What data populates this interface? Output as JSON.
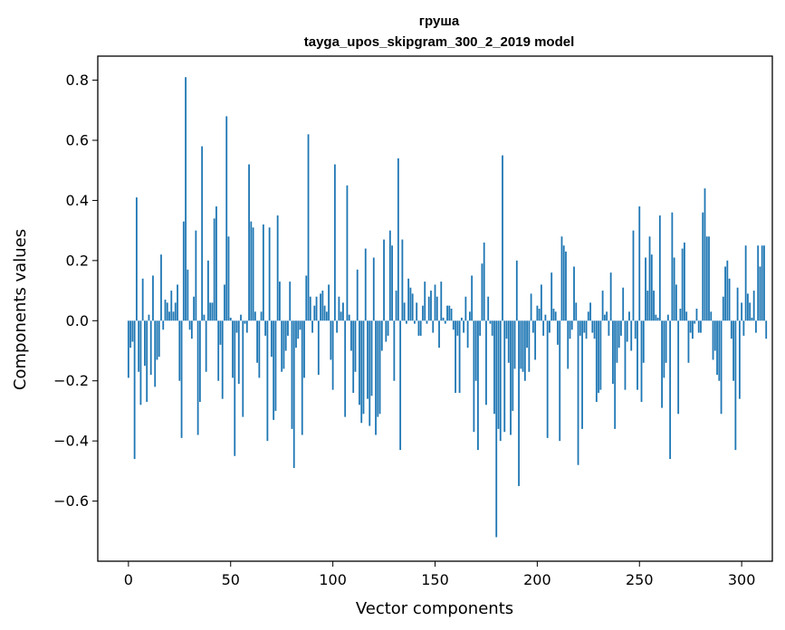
{
  "chart_data": {
    "type": "bar",
    "title": "груша",
    "subtitle": "tayga_upos_skipgram_300_2_2019 model",
    "xlabel": "Vector components",
    "ylabel": "Components values",
    "xlim": [
      -15,
      315
    ],
    "ylim": [
      -0.8,
      0.88
    ],
    "xticks": [
      0,
      50,
      100,
      150,
      200,
      250,
      300
    ],
    "yticks": [
      -0.6,
      -0.4,
      -0.2,
      0.0,
      0.2,
      0.4,
      0.6,
      0.8
    ],
    "xtick_labels": [
      "0",
      "50",
      "100",
      "150",
      "200",
      "250",
      "300"
    ],
    "ytick_labels": [
      "−0.6",
      "−0.4",
      "−0.2",
      "0.0",
      "0.2",
      "0.4",
      "0.6",
      "0.8"
    ],
    "bar_color": "#1f77b4",
    "grid": false,
    "values": [
      -0.19,
      -0.09,
      -0.07,
      -0.46,
      0.41,
      -0.17,
      -0.28,
      0.14,
      -0.15,
      -0.27,
      0.02,
      -0.18,
      0.15,
      -0.22,
      -0.13,
      -0.12,
      0.22,
      -0.03,
      0.07,
      0.06,
      0.03,
      0.1,
      0.03,
      0.06,
      0.12,
      -0.2,
      -0.39,
      0.33,
      0.81,
      0.17,
      -0.03,
      -0.06,
      0.08,
      0.3,
      -0.38,
      -0.27,
      0.58,
      0.02,
      -0.17,
      0.2,
      0.06,
      0.06,
      0.34,
      0.38,
      -0.2,
      -0.08,
      -0.26,
      0.12,
      0.68,
      0.28,
      0.01,
      -0.19,
      -0.45,
      -0.04,
      -0.21,
      0.02,
      -0.32,
      -0.01,
      -0.04,
      0.52,
      0.33,
      0.31,
      0.03,
      -0.14,
      -0.19,
      0.03,
      0.32,
      -0.05,
      -0.4,
      0.31,
      -0.12,
      -0.33,
      -0.3,
      0.35,
      0.13,
      -0.17,
      -0.16,
      -0.1,
      -0.05,
      0.13,
      -0.36,
      -0.49,
      -0.09,
      -0.06,
      -0.03,
      -0.38,
      -0.19,
      0.15,
      0.62,
      0.08,
      -0.04,
      0.05,
      0.08,
      -0.18,
      0.09,
      0.1,
      0.05,
      0.03,
      0.12,
      -0.13,
      -0.23,
      0.52,
      -0.04,
      0.08,
      0.03,
      0.06,
      -0.32,
      0.45,
      0.02,
      -0.1,
      -0.24,
      -0.17,
      0.17,
      -0.28,
      -0.34,
      -0.31,
      0.24,
      -0.26,
      -0.35,
      -0.25,
      0.21,
      -0.38,
      -0.32,
      -0.31,
      -0.1,
      0.27,
      -0.07,
      -0.05,
      0.3,
      0.25,
      -0.2,
      0.1,
      0.54,
      -0.43,
      0.27,
      0.06,
      -0.01,
      0.14,
      0.11,
      0.09,
      -0.01,
      0.06,
      -0.05,
      -0.05,
      0.05,
      0.13,
      -0.01,
      0.08,
      0.1,
      -0.04,
      0.12,
      0.08,
      -0.09,
      0.13,
      0.01,
      -0.01,
      0.05,
      0.05,
      0.04,
      -0.03,
      -0.24,
      -0.05,
      -0.24,
      0.01,
      -0.04,
      0.08,
      -0.09,
      0.03,
      0.15,
      -0.37,
      -0.2,
      -0.43,
      -0.05,
      0.19,
      0.26,
      -0.28,
      0.08,
      -0.01,
      -0.05,
      -0.31,
      -0.72,
      -0.36,
      -0.4,
      0.55,
      -0.37,
      -0.06,
      -0.14,
      -0.38,
      -0.3,
      -0.16,
      0.2,
      -0.55,
      -0.16,
      -0.17,
      -0.2,
      -0.09,
      -0.17,
      0.09,
      -0.04,
      -0.13,
      0.05,
      0.04,
      0.12,
      -0.05,
      0.02,
      -0.39,
      -0.04,
      0.16,
      0.04,
      0.03,
      -0.08,
      -0.4,
      0.28,
      0.25,
      0.23,
      -0.16,
      -0.06,
      -0.03,
      0.18,
      0.06,
      -0.48,
      -0.05,
      -0.36,
      -0.04,
      -0.06,
      0.03,
      0.06,
      -0.04,
      -0.06,
      -0.27,
      -0.24,
      -0.23,
      0.1,
      0.02,
      0.03,
      -0.05,
      0.16,
      -0.21,
      -0.36,
      -0.14,
      -0.09,
      -0.05,
      0.11,
      -0.23,
      -0.07,
      0.03,
      -0.1,
      0.3,
      -0.06,
      -0.23,
      0.38,
      -0.27,
      -0.14,
      0.21,
      0.1,
      0.28,
      0.22,
      0.1,
      0.02,
      0.01,
      0.35,
      -0.29,
      -0.19,
      -0.14,
      0.02,
      -0.46,
      0.36,
      0.21,
      0.12,
      -0.31,
      0.04,
      0.24,
      0.26,
      0.03,
      -0.14,
      -0.04,
      -0.06,
      -0.01,
      0.04,
      -0.04,
      -0.04,
      0.36,
      0.44,
      0.28,
      0.28,
      0.03,
      -0.13,
      -0.1,
      -0.18,
      -0.2,
      -0.31,
      0.08,
      0.18,
      0.2,
      0.14,
      -0.06,
      -0.2,
      -0.43,
      0.11,
      -0.26,
      0.06,
      -0.05,
      0.25,
      0.09,
      0.06,
      0.01,
      0.1,
      -0.04,
      0.25,
      0.18,
      0.25,
      0.25,
      -0.06
    ]
  }
}
